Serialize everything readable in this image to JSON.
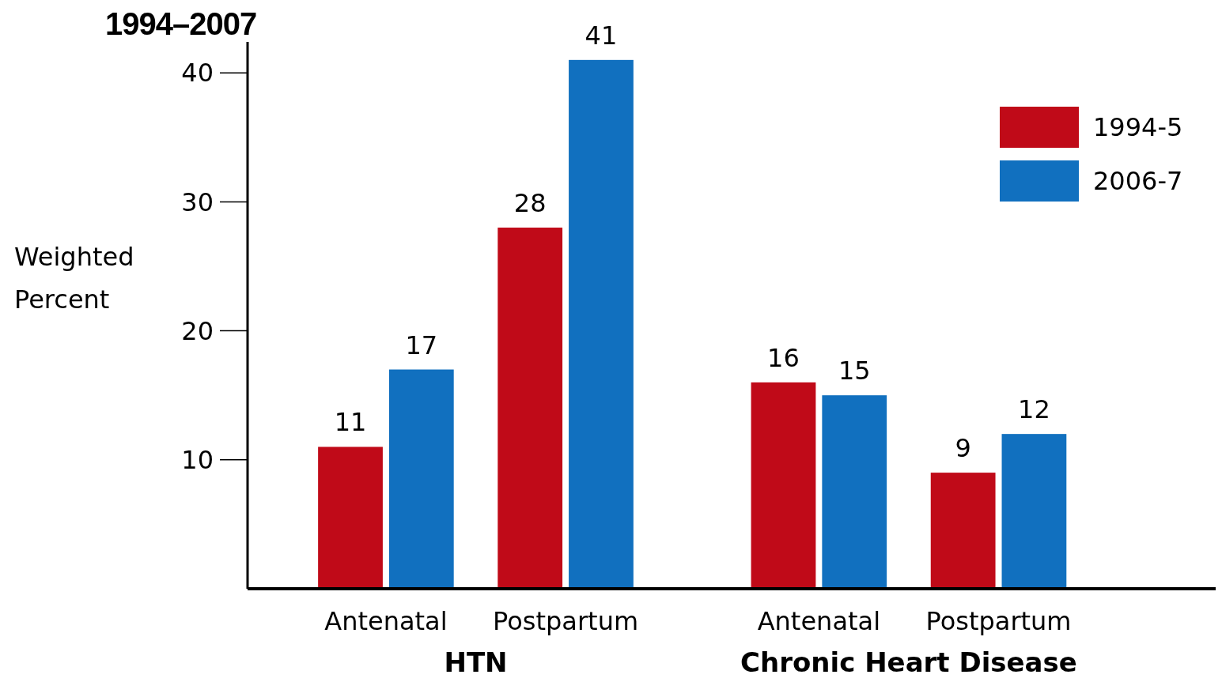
{
  "chart_data": {
    "type": "bar",
    "title": "1994–2007",
    "ylabel": "Weighted Percent",
    "categories": [
      "Antenatal",
      "Postpartum",
      "Antenatal",
      "Postpartum"
    ],
    "series": [
      {
        "name": "1994-5",
        "color": "#c00a18",
        "values": [
          11,
          28,
          16,
          9
        ]
      },
      {
        "name": "2006-7",
        "color": "#1170bf",
        "values": [
          17,
          41,
          15,
          12
        ]
      }
    ],
    "annotations": [
      "HTN",
      "Chronic Heart Disease"
    ],
    "ylim": [
      0,
      42.4
    ],
    "yticks": [
      10,
      20,
      30,
      40
    ],
    "data_labels": true,
    "legend": "top right",
    "grid": false
  }
}
